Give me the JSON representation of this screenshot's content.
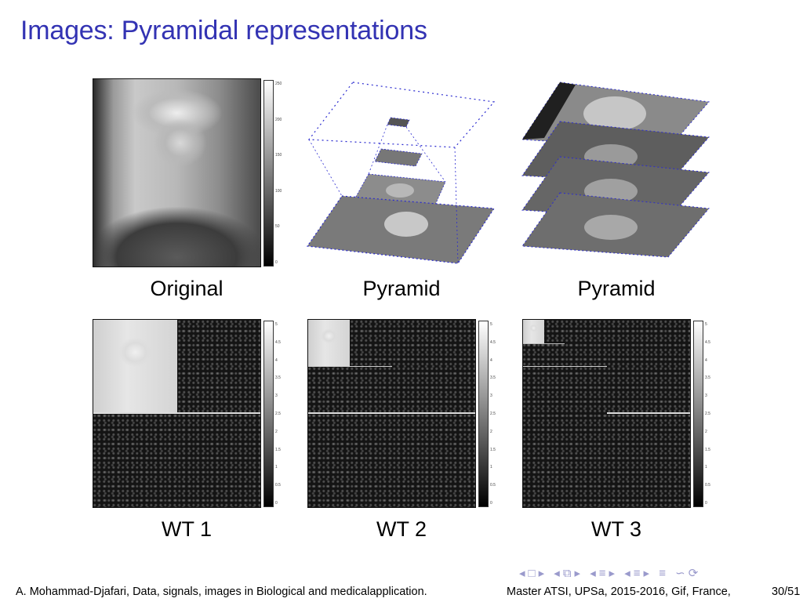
{
  "slide": {
    "title": "Images: Pyramidal representations",
    "captions": {
      "original": "Original",
      "pyramid1": "Pyramid",
      "pyramid2": "Pyramid",
      "wt1": "WT 1",
      "wt2": "WT 2",
      "wt3": "WT 3"
    },
    "colorbars": {
      "original": [
        "250",
        "200",
        "150",
        "100",
        "50",
        "0"
      ],
      "wt1": [
        "5",
        "4.5",
        "4",
        "3.5",
        "3",
        "2.5",
        "2",
        "1.5",
        "1",
        "0.5",
        "0"
      ],
      "wt2": [
        "5",
        "4.5",
        "4",
        "3.5",
        "3",
        "2.5",
        "2",
        "1.5",
        "1",
        "0.5",
        "0"
      ],
      "wt3": [
        "5",
        "4.5",
        "4",
        "3.5",
        "3",
        "2.5",
        "2",
        "1.5",
        "1",
        "0.5",
        "0"
      ]
    }
  },
  "footer": {
    "authors": "A. Mohammad-Djafari, Data, signals, images in Biological and medicalapplication.",
    "course": "Master ATSI, UPSa, 2015-2016, Gif, France,",
    "page": "30/51"
  },
  "nav_icons": [
    "nav-prev-frame-icon",
    "nav-next-frame-icon",
    "nav-prev-section-icon",
    "nav-next-section-icon",
    "nav-search-icon"
  ]
}
